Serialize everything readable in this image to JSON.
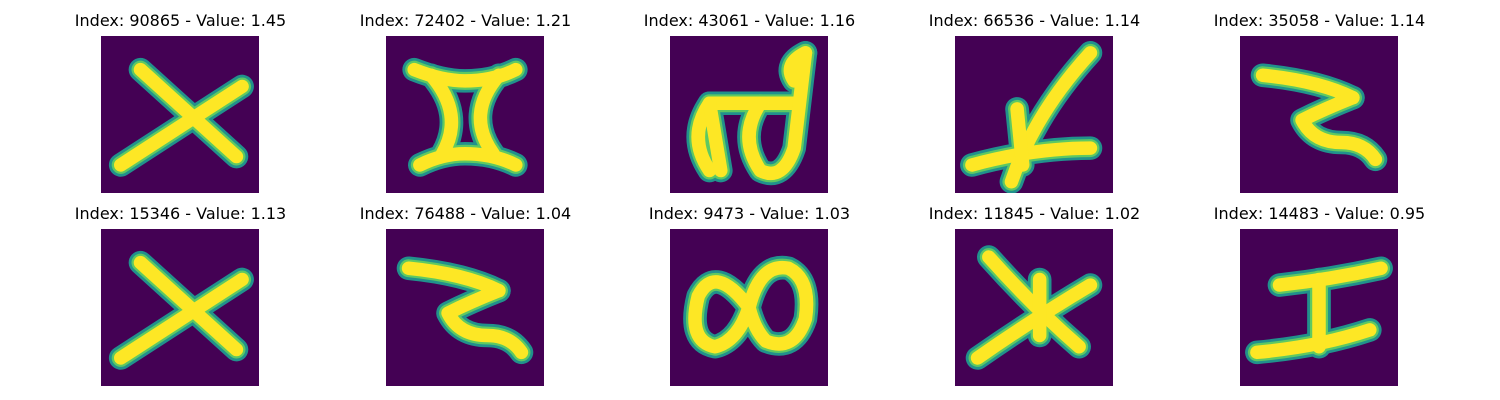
{
  "chart_data": {
    "type": "image_grid",
    "rows": 2,
    "cols": 5,
    "colormap": "viridis",
    "colors": {
      "background": "#440154",
      "stroke": "#fde725",
      "edge": "#21918c",
      "edge2": "#5ec962"
    },
    "panels": [
      {
        "title": "Index: 90865 - Value: 1.45",
        "index": 90865,
        "value": 1.45,
        "glyph": "x"
      },
      {
        "title": "Index: 72402 - Value: 1.21",
        "index": 72402,
        "value": 1.21,
        "glyph": "hourglass"
      },
      {
        "title": "Index: 43061 - Value: 1.16",
        "index": 43061,
        "value": 1.16,
        "glyph": "script-b"
      },
      {
        "title": "Index: 66536 - Value: 1.14",
        "index": 66536,
        "value": 1.14,
        "glyph": "slash-cross"
      },
      {
        "title": "Index: 35058 - Value: 1.14",
        "index": 35058,
        "value": 1.14,
        "glyph": "z-shape"
      },
      {
        "title": "Index: 15346 - Value: 1.13",
        "index": 15346,
        "value": 1.13,
        "glyph": "x"
      },
      {
        "title": "Index: 76488 - Value: 1.04",
        "index": 76488,
        "value": 1.04,
        "glyph": "z-shape"
      },
      {
        "title": "Index: 9473 - Value: 1.03",
        "index": 9473,
        "value": 1.03,
        "glyph": "infinity"
      },
      {
        "title": "Index: 11845 - Value: 1.02",
        "index": 11845,
        "value": 1.02,
        "glyph": "asterisk"
      },
      {
        "title": "Index: 14483 - Value: 0.95",
        "index": 14483,
        "value": 0.95,
        "glyph": "i-beam"
      }
    ]
  }
}
